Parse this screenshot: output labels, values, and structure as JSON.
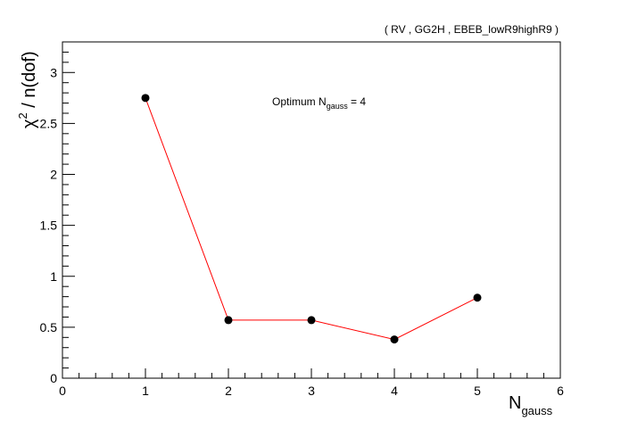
{
  "header": "( RV , GG2H , EBEB_lowR9highR9 )",
  "chart_data": {
    "type": "line",
    "x": [
      1,
      2,
      3,
      4,
      5
    ],
    "y": [
      2.75,
      0.57,
      0.57,
      0.38,
      0.79
    ],
    "xlim": [
      0,
      6
    ],
    "ylim": [
      0,
      3.3
    ],
    "x_ticks": [
      "0",
      "1",
      "2",
      "3",
      "4",
      "5",
      "6"
    ],
    "y_ticks": [
      "0",
      "0.5",
      "1",
      "1.5",
      "2",
      "2.5",
      "3"
    ],
    "xlabel": {
      "main": "N",
      "sub": "gauss"
    },
    "ylabel": {
      "main": "χ",
      "sup": "2",
      "rest": " / n(dof)"
    },
    "annotation": {
      "prefix": "Optimum N",
      "sub": "gauss",
      "suffix": " = 4"
    },
    "grid": false,
    "line_color": "#ff0000",
    "marker_color": "#000000"
  }
}
